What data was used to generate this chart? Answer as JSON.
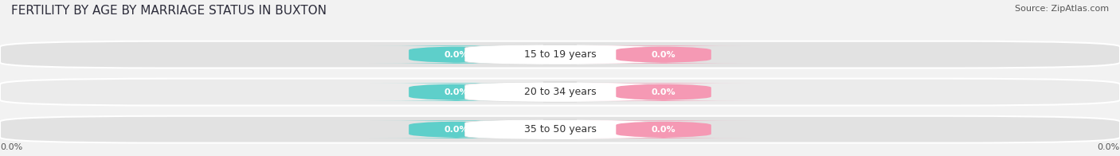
{
  "title": "FERTILITY BY AGE BY MARRIAGE STATUS IN BUXTON",
  "source": "Source: ZipAtlas.com",
  "categories": [
    "15 to 19 years",
    "20 to 34 years",
    "35 to 50 years"
  ],
  "married_values": [
    0.0,
    0.0,
    0.0
  ],
  "unmarried_values": [
    0.0,
    0.0,
    0.0
  ],
  "married_color": "#5ECFCA",
  "unmarried_color": "#F599B4",
  "bar_bg_color": "#E2E2E2",
  "bar_bg_color2": "#EBEBEB",
  "title_fontsize": 11,
  "label_fontsize": 8,
  "category_fontsize": 9,
  "legend_fontsize": 9,
  "source_fontsize": 8,
  "axis_label_left": "0.0%",
  "axis_label_right": "0.0%",
  "background_color": "#F2F2F2"
}
